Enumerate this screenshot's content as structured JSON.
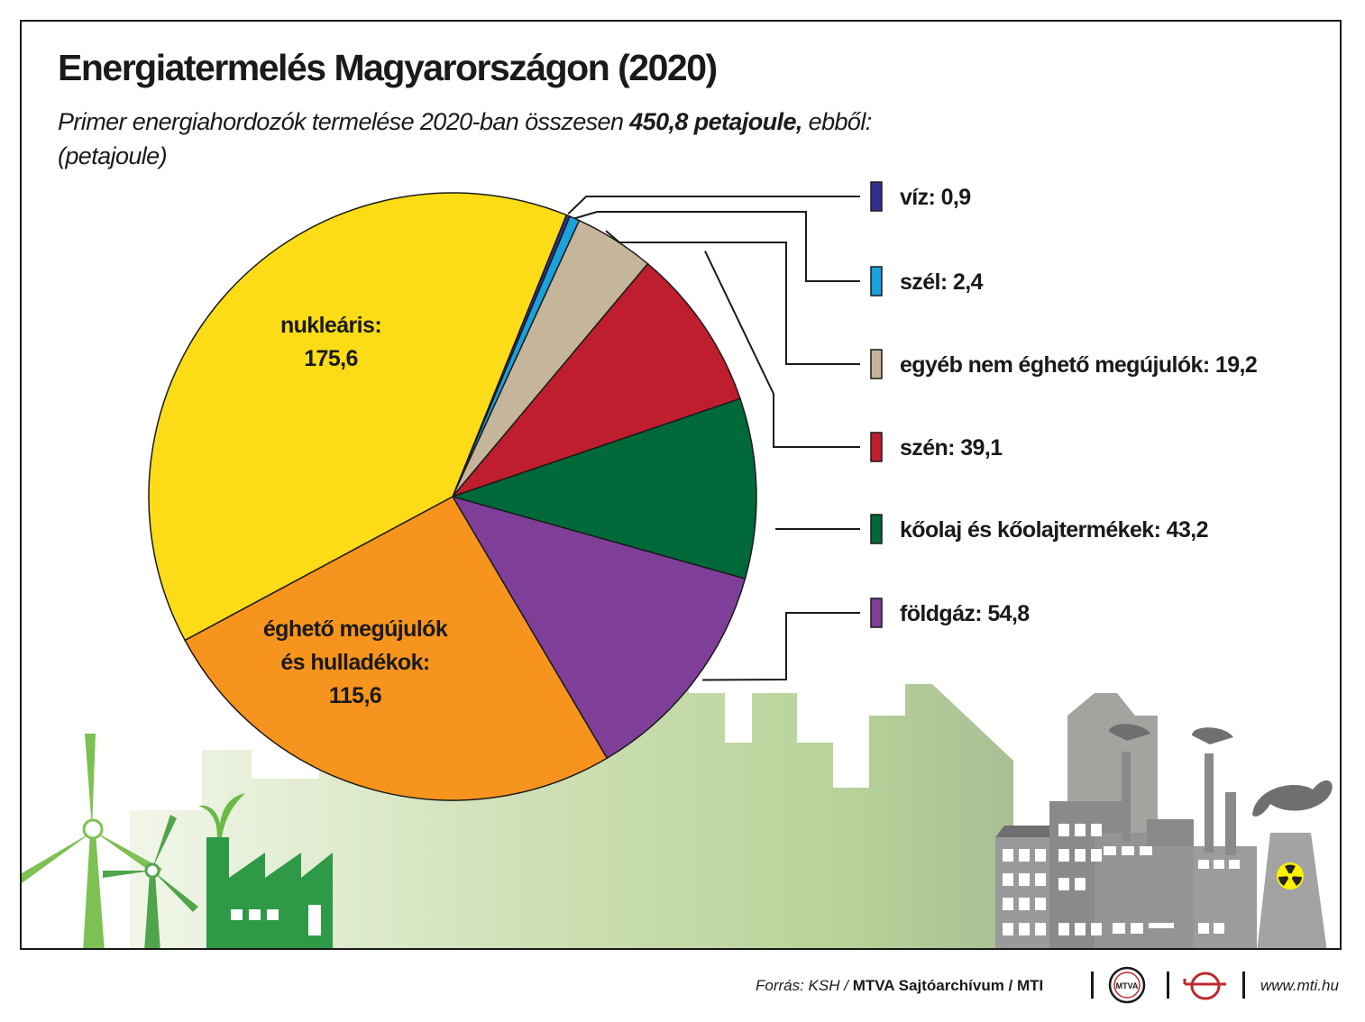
{
  "title": "Energiatermelés Magyarországon (2020)",
  "subtitle": {
    "pre": "Primer energiahordozók termelése 2020-ban összesen ",
    "bold": "450,8 petajoule,",
    "post": " ebből:",
    "unit": "(petajoule)"
  },
  "chart_data": {
    "type": "pie",
    "title": "Energiatermelés Magyarországon (2020)",
    "total": 450.8,
    "unit": "petajoule",
    "slices": [
      {
        "label": "víz",
        "value": 0.9,
        "color": "#2e3192"
      },
      {
        "label": "szél",
        "value": 2.4,
        "color": "#1ba1dc"
      },
      {
        "label": "egyéb nem éghető megújulók",
        "value": 19.2,
        "color": "#c4b59b"
      },
      {
        "label": "szén",
        "value": 39.1,
        "color": "#be1e2d"
      },
      {
        "label": "kőolaj és kőolajtermékek",
        "value": 43.2,
        "color": "#00693a"
      },
      {
        "label": "földgáz",
        "value": 54.8,
        "color": "#7f3f98"
      },
      {
        "label": "éghető megújulók és hulladékok",
        "value": 115.6,
        "color": "#f7941d"
      },
      {
        "label": "nukleáris",
        "value": 175.6,
        "color": "#fcdc17"
      }
    ],
    "legend_texts": [
      "víz: 0,9",
      "szél: 2,4",
      "egyéb nem éghető megújulók: 19,2",
      "szén: 39,1",
      "kőolaj és kőolajtermékek: 43,2",
      "földgáz: 54,8"
    ],
    "inside_labels": {
      "nuclear": [
        "nukleáris:",
        "175,6"
      ],
      "renewables": [
        "éghető megújulók",
        "és hulladékok:",
        "115,6"
      ]
    },
    "legend_placement": "right"
  },
  "footer": {
    "source_prefix": "Forrás: KSH / ",
    "source_bold": "MTVA Sajtóarchívum / MTI",
    "mtva_logo_text": "MTVA",
    "website": "www.mti.hu"
  }
}
